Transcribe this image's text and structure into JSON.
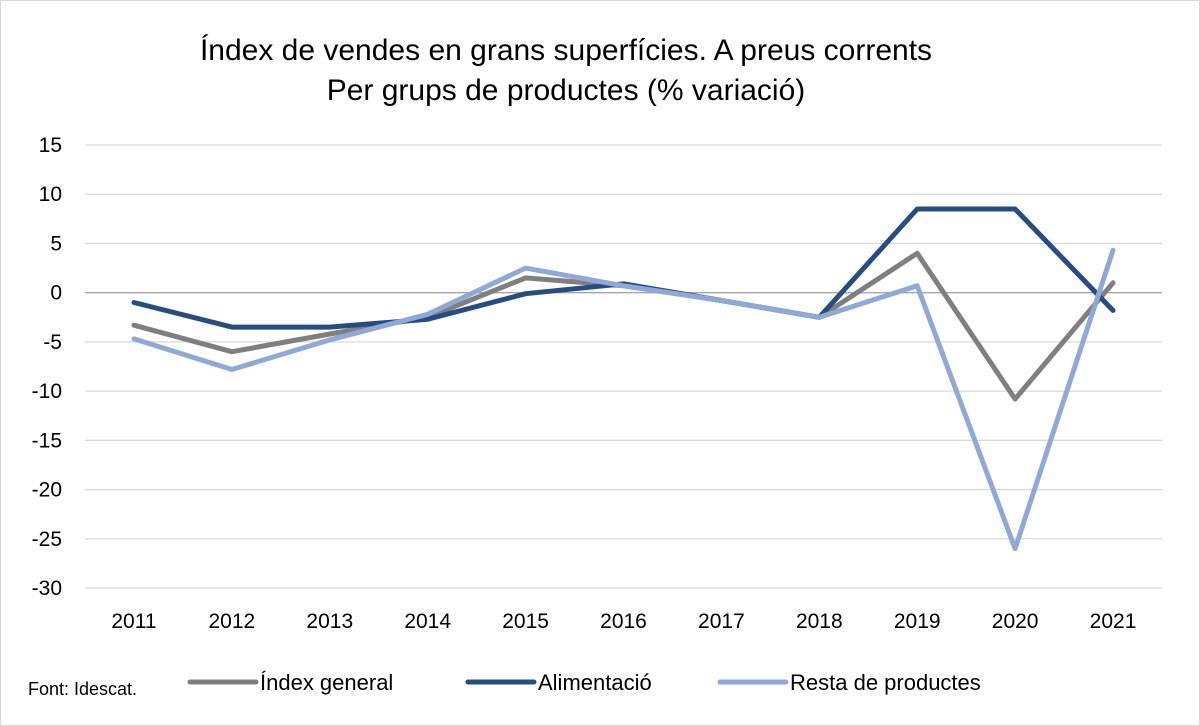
{
  "chart_data": {
    "type": "line",
    "title_lines": [
      "Índex de vendes en grans superfícies. A preus corrents",
      "Per grups de productes (% variació)"
    ],
    "categories": [
      "2011",
      "2012",
      "2013",
      "2014",
      "2015",
      "2016",
      "2017",
      "2018",
      "2019",
      "2020",
      "2021"
    ],
    "ylim": [
      -30,
      15
    ],
    "y_ticks": [
      15,
      10,
      5,
      0,
      -5,
      -10,
      -15,
      -20,
      -25,
      -30
    ],
    "grid": true,
    "series": [
      {
        "name": "Índex general",
        "color": "#7f7f7f",
        "values": [
          -3.3,
          -6.0,
          -4.2,
          -2.5,
          1.5,
          0.7,
          -0.8,
          -2.5,
          4.0,
          -10.8,
          1.0
        ]
      },
      {
        "name": "Alimentació",
        "color": "#264d82",
        "values": [
          -1.0,
          -3.5,
          -3.5,
          -2.7,
          -0.1,
          0.9,
          -0.8,
          -2.5,
          8.5,
          8.5,
          -1.8
        ]
      },
      {
        "name": "Resta de productes",
        "color": "#8ea9d8",
        "values": [
          -4.7,
          -7.8,
          -4.8,
          -2.2,
          2.5,
          0.7,
          -0.8,
          -2.5,
          0.7,
          -26.0,
          4.3
        ]
      }
    ],
    "legend_position": "bottom",
    "source": "Font: Idescat."
  }
}
